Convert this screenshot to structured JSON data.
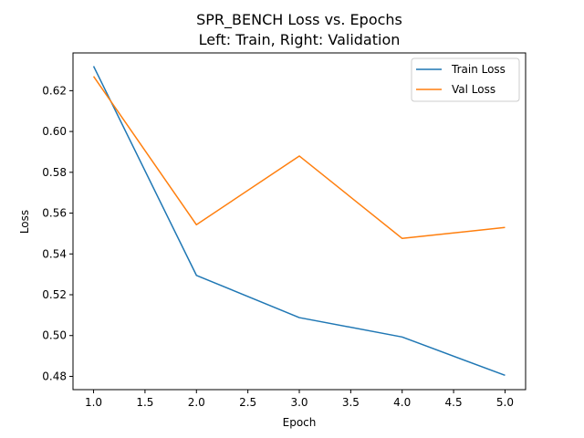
{
  "chart_data": {
    "type": "line",
    "title": "SPR_BENCH Loss vs. Epochs",
    "subtitle": "Left: Train, Right: Validation",
    "xlabel": "Epoch",
    "ylabel": "Loss",
    "xlim": [
      0.8,
      5.2
    ],
    "ylim": [
      0.4735,
      0.6385
    ],
    "xticks": [
      "1.0",
      "1.5",
      "2.0",
      "2.5",
      "3.0",
      "3.5",
      "4.0",
      "4.5",
      "5.0"
    ],
    "yticks": [
      "0.48",
      "0.50",
      "0.52",
      "0.54",
      "0.56",
      "0.58",
      "0.60",
      "0.62"
    ],
    "x": [
      1,
      2,
      3,
      4,
      5
    ],
    "series": [
      {
        "name": "Train Loss",
        "color": "#1f77b4",
        "values": [
          0.632,
          0.5295,
          0.5088,
          0.4993,
          0.4805
        ]
      },
      {
        "name": "Val Loss",
        "color": "#ff7f0e",
        "values": [
          0.627,
          0.5543,
          0.588,
          0.5476,
          0.553
        ]
      }
    ],
    "grid": false,
    "legend_position": "top-right"
  }
}
